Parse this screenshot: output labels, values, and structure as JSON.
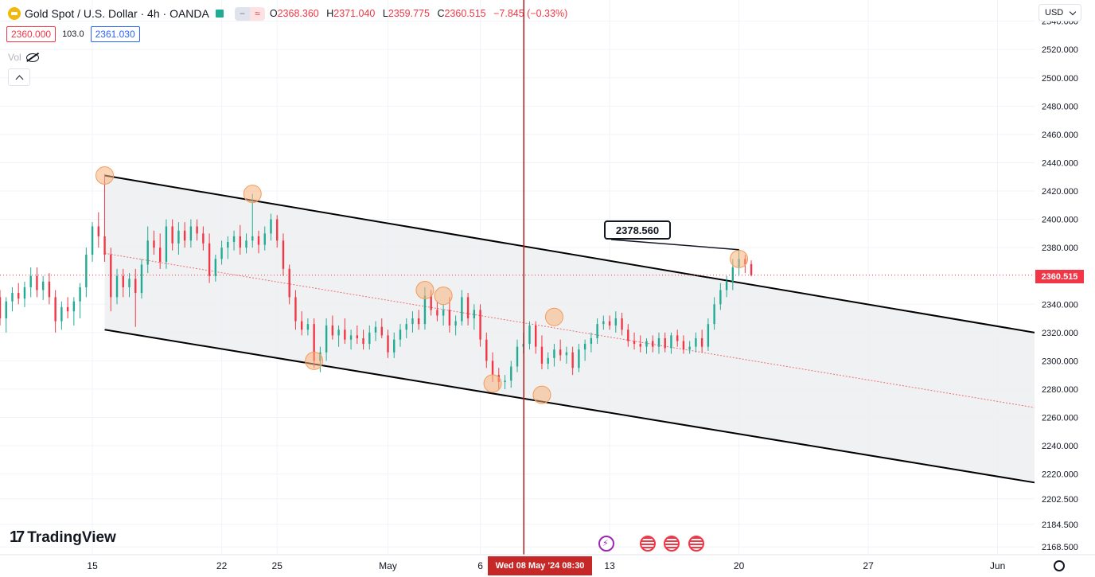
{
  "header": {
    "title": "Gold Spot / U.S. Dollar · 4h · OANDA",
    "ohlc": [
      {
        "k": "O",
        "v": "2368.360"
      },
      {
        "k": "H",
        "v": "2371.040"
      },
      {
        "k": "L",
        "v": "2359.775"
      },
      {
        "k": "C",
        "v": "2360.515"
      }
    ],
    "change": "−7.845 (−0.33%)",
    "bid": "2360.000",
    "spread": "103.0",
    "ask": "2361.030",
    "vol_label": "Vol",
    "currency": "USD"
  },
  "logo": "TradingView",
  "crosshair_time_label": "Wed 08 May '24   08:30",
  "last_price_label": "2360.515",
  "callout_label": "2378.560",
  "colors": {
    "up": "#22ab94",
    "down": "#f23645",
    "channel": "#000000",
    "fill": "#eceef0",
    "marker": "#f7b27d",
    "crosshair": "#b71c1c"
  },
  "chart_data": {
    "type": "candlestick",
    "symbol": "XAUUSD",
    "timeframe": "4h",
    "x_domain": [
      "2024-04-10",
      "2024-06-05"
    ],
    "y_range": [
      2163,
      2555
    ],
    "yticks": [
      2540,
      2520,
      2500,
      2480,
      2460,
      2440,
      2420,
      2400,
      2380,
      2340,
      2320,
      2300,
      2280,
      2260,
      2240,
      2220,
      2202.5,
      2184.5,
      2168.5
    ],
    "ytick_labels": [
      "2540.000",
      "2520.000",
      "2500.000",
      "2480.000",
      "2460.000",
      "2440.000",
      "2420.000",
      "2400.000",
      "2380.000",
      "2340.000",
      "2320.000",
      "2300.000",
      "2280.000",
      "2260.000",
      "2240.000",
      "2220.000",
      "2202.500",
      "2184.500",
      "2168.500"
    ],
    "xticks": [
      {
        "date": "2024-04-15",
        "label": "15"
      },
      {
        "date": "2024-04-22",
        "label": "22"
      },
      {
        "date": "2024-04-25",
        "label": "25"
      },
      {
        "date": "2024-05-01",
        "label": "May"
      },
      {
        "date": "2024-05-06",
        "label": "6"
      },
      {
        "date": "2024-05-13",
        "label": "13"
      },
      {
        "date": "2024-05-20",
        "label": "20"
      },
      {
        "date": "2024-05-27",
        "label": "27"
      },
      {
        "date": "2024-06-03",
        "label": "Jun"
      }
    ],
    "last_price": 2360.515,
    "crosshair_time": "2024-05-08T08:30",
    "candles": [
      {
        "t": "2024-04-10T00:00",
        "o": 2345,
        "h": 2350,
        "l": 2325,
        "c": 2330
      },
      {
        "t": "2024-04-10T08:00",
        "o": 2330,
        "h": 2345,
        "l": 2320,
        "c": 2342
      },
      {
        "t": "2024-04-10T16:00",
        "o": 2342,
        "h": 2352,
        "l": 2335,
        "c": 2348
      },
      {
        "t": "2024-04-11T00:00",
        "o": 2348,
        "h": 2355,
        "l": 2340,
        "c": 2344
      },
      {
        "t": "2024-04-11T08:00",
        "o": 2344,
        "h": 2356,
        "l": 2338,
        "c": 2352
      },
      {
        "t": "2024-04-11T16:00",
        "o": 2352,
        "h": 2366,
        "l": 2345,
        "c": 2360
      },
      {
        "t": "2024-04-12T00:00",
        "o": 2360,
        "h": 2366,
        "l": 2345,
        "c": 2350
      },
      {
        "t": "2024-04-12T08:00",
        "o": 2350,
        "h": 2360,
        "l": 2343,
        "c": 2356
      },
      {
        "t": "2024-04-12T16:00",
        "o": 2356,
        "h": 2362,
        "l": 2340,
        "c": 2345
      },
      {
        "t": "2024-04-13T00:00",
        "o": 2345,
        "h": 2350,
        "l": 2320,
        "c": 2328
      },
      {
        "t": "2024-04-13T08:00",
        "o": 2328,
        "h": 2342,
        "l": 2322,
        "c": 2338
      },
      {
        "t": "2024-04-13T16:00",
        "o": 2338,
        "h": 2345,
        "l": 2330,
        "c": 2335
      },
      {
        "t": "2024-04-14T00:00",
        "o": 2335,
        "h": 2345,
        "l": 2325,
        "c": 2342
      },
      {
        "t": "2024-04-14T08:00",
        "o": 2342,
        "h": 2355,
        "l": 2330,
        "c": 2352
      },
      {
        "t": "2024-04-14T16:00",
        "o": 2352,
        "h": 2380,
        "l": 2345,
        "c": 2375
      },
      {
        "t": "2024-04-15T00:00",
        "o": 2375,
        "h": 2398,
        "l": 2370,
        "c": 2395
      },
      {
        "t": "2024-04-15T08:00",
        "o": 2395,
        "h": 2405,
        "l": 2380,
        "c": 2388
      },
      {
        "t": "2024-04-15T16:00",
        "o": 2388,
        "h": 2432,
        "l": 2370,
        "c": 2375
      },
      {
        "t": "2024-04-16T00:00",
        "o": 2375,
        "h": 2380,
        "l": 2335,
        "c": 2345
      },
      {
        "t": "2024-04-16T08:00",
        "o": 2345,
        "h": 2365,
        "l": 2340,
        "c": 2360
      },
      {
        "t": "2024-04-16T16:00",
        "o": 2360,
        "h": 2365,
        "l": 2345,
        "c": 2352
      },
      {
        "t": "2024-04-17T00:00",
        "o": 2352,
        "h": 2362,
        "l": 2345,
        "c": 2358
      },
      {
        "t": "2024-04-17T08:00",
        "o": 2358,
        "h": 2365,
        "l": 2324,
        "c": 2348
      },
      {
        "t": "2024-04-17T16:00",
        "o": 2348,
        "h": 2372,
        "l": 2344,
        "c": 2368
      },
      {
        "t": "2024-04-18T00:00",
        "o": 2368,
        "h": 2395,
        "l": 2362,
        "c": 2385
      },
      {
        "t": "2024-04-18T08:00",
        "o": 2385,
        "h": 2392,
        "l": 2375,
        "c": 2380
      },
      {
        "t": "2024-04-18T16:00",
        "o": 2380,
        "h": 2390,
        "l": 2365,
        "c": 2370
      },
      {
        "t": "2024-04-19T00:00",
        "o": 2370,
        "h": 2400,
        "l": 2365,
        "c": 2395
      },
      {
        "t": "2024-04-19T08:00",
        "o": 2395,
        "h": 2400,
        "l": 2378,
        "c": 2383
      },
      {
        "t": "2024-04-19T16:00",
        "o": 2383,
        "h": 2398,
        "l": 2375,
        "c": 2392
      },
      {
        "t": "2024-04-20T00:00",
        "o": 2392,
        "h": 2398,
        "l": 2380,
        "c": 2385
      },
      {
        "t": "2024-04-20T08:00",
        "o": 2385,
        "h": 2400,
        "l": 2380,
        "c": 2395
      },
      {
        "t": "2024-04-20T16:00",
        "o": 2395,
        "h": 2400,
        "l": 2385,
        "c": 2390
      },
      {
        "t": "2024-04-21T00:00",
        "o": 2390,
        "h": 2395,
        "l": 2378,
        "c": 2383
      },
      {
        "t": "2024-04-21T08:00",
        "o": 2383,
        "h": 2390,
        "l": 2355,
        "c": 2360
      },
      {
        "t": "2024-04-21T16:00",
        "o": 2360,
        "h": 2375,
        "l": 2356,
        "c": 2372
      },
      {
        "t": "2024-04-22T00:00",
        "o": 2372,
        "h": 2385,
        "l": 2368,
        "c": 2380
      },
      {
        "t": "2024-04-22T08:00",
        "o": 2380,
        "h": 2388,
        "l": 2372,
        "c": 2384
      },
      {
        "t": "2024-04-22T16:00",
        "o": 2384,
        "h": 2392,
        "l": 2378,
        "c": 2388
      },
      {
        "t": "2024-04-23T00:00",
        "o": 2388,
        "h": 2396,
        "l": 2375,
        "c": 2380
      },
      {
        "t": "2024-04-23T08:00",
        "o": 2380,
        "h": 2390,
        "l": 2376,
        "c": 2385
      },
      {
        "t": "2024-04-23T16:00",
        "o": 2385,
        "h": 2418,
        "l": 2380,
        "c": 2388
      },
      {
        "t": "2024-04-24T00:00",
        "o": 2388,
        "h": 2392,
        "l": 2376,
        "c": 2382
      },
      {
        "t": "2024-04-24T08:00",
        "o": 2382,
        "h": 2395,
        "l": 2378,
        "c": 2390
      },
      {
        "t": "2024-04-24T16:00",
        "o": 2390,
        "h": 2404,
        "l": 2385,
        "c": 2400
      },
      {
        "t": "2024-04-25T00:00",
        "o": 2400,
        "h": 2403,
        "l": 2380,
        "c": 2385
      },
      {
        "t": "2024-04-25T08:00",
        "o": 2385,
        "h": 2390,
        "l": 2360,
        "c": 2365
      },
      {
        "t": "2024-04-25T16:00",
        "o": 2365,
        "h": 2368,
        "l": 2340,
        "c": 2345
      },
      {
        "t": "2024-04-26T00:00",
        "o": 2345,
        "h": 2350,
        "l": 2322,
        "c": 2328
      },
      {
        "t": "2024-04-26T08:00",
        "o": 2328,
        "h": 2335,
        "l": 2318,
        "c": 2322
      },
      {
        "t": "2024-04-26T16:00",
        "o": 2322,
        "h": 2330,
        "l": 2318,
        "c": 2326
      },
      {
        "t": "2024-04-27T00:00",
        "o": 2326,
        "h": 2330,
        "l": 2295,
        "c": 2300
      },
      {
        "t": "2024-04-27T08:00",
        "o": 2300,
        "h": 2310,
        "l": 2292,
        "c": 2306
      },
      {
        "t": "2024-04-27T16:00",
        "o": 2306,
        "h": 2330,
        "l": 2300,
        "c": 2325
      },
      {
        "t": "2024-04-28T00:00",
        "o": 2325,
        "h": 2332,
        "l": 2315,
        "c": 2318
      },
      {
        "t": "2024-04-28T08:00",
        "o": 2318,
        "h": 2325,
        "l": 2310,
        "c": 2322
      },
      {
        "t": "2024-04-28T16:00",
        "o": 2322,
        "h": 2330,
        "l": 2312,
        "c": 2315
      },
      {
        "t": "2024-04-29T00:00",
        "o": 2315,
        "h": 2322,
        "l": 2308,
        "c": 2318
      },
      {
        "t": "2024-04-29T08:00",
        "o": 2318,
        "h": 2325,
        "l": 2312,
        "c": 2316
      },
      {
        "t": "2024-04-29T16:00",
        "o": 2316,
        "h": 2322,
        "l": 2308,
        "c": 2312
      },
      {
        "t": "2024-04-30T00:00",
        "o": 2312,
        "h": 2325,
        "l": 2308,
        "c": 2320
      },
      {
        "t": "2024-04-30T08:00",
        "o": 2320,
        "h": 2328,
        "l": 2314,
        "c": 2324
      },
      {
        "t": "2024-04-30T16:00",
        "o": 2324,
        "h": 2330,
        "l": 2316,
        "c": 2318
      },
      {
        "t": "2024-05-01T00:00",
        "o": 2318,
        "h": 2322,
        "l": 2302,
        "c": 2306
      },
      {
        "t": "2024-05-01T08:00",
        "o": 2306,
        "h": 2320,
        "l": 2302,
        "c": 2315
      },
      {
        "t": "2024-05-01T16:00",
        "o": 2315,
        "h": 2326,
        "l": 2310,
        "c": 2322
      },
      {
        "t": "2024-05-02T00:00",
        "o": 2322,
        "h": 2330,
        "l": 2316,
        "c": 2326
      },
      {
        "t": "2024-05-02T08:00",
        "o": 2326,
        "h": 2335,
        "l": 2320,
        "c": 2330
      },
      {
        "t": "2024-05-02T16:00",
        "o": 2330,
        "h": 2336,
        "l": 2322,
        "c": 2326
      },
      {
        "t": "2024-05-03T00:00",
        "o": 2326,
        "h": 2352,
        "l": 2322,
        "c": 2346
      },
      {
        "t": "2024-05-03T08:00",
        "o": 2346,
        "h": 2350,
        "l": 2332,
        "c": 2336
      },
      {
        "t": "2024-05-03T16:00",
        "o": 2336,
        "h": 2342,
        "l": 2328,
        "c": 2332
      },
      {
        "t": "2024-05-04T00:00",
        "o": 2332,
        "h": 2340,
        "l": 2325,
        "c": 2336
      },
      {
        "t": "2024-05-04T08:00",
        "o": 2336,
        "h": 2345,
        "l": 2320,
        "c": 2325
      },
      {
        "t": "2024-05-04T16:00",
        "o": 2325,
        "h": 2332,
        "l": 2318,
        "c": 2328
      },
      {
        "t": "2024-05-05T00:00",
        "o": 2328,
        "h": 2350,
        "l": 2325,
        "c": 2345
      },
      {
        "t": "2024-05-05T08:00",
        "o": 2345,
        "h": 2348,
        "l": 2325,
        "c": 2330
      },
      {
        "t": "2024-05-05T16:00",
        "o": 2330,
        "h": 2340,
        "l": 2322,
        "c": 2336
      },
      {
        "t": "2024-05-06T00:00",
        "o": 2336,
        "h": 2340,
        "l": 2310,
        "c": 2315
      },
      {
        "t": "2024-05-06T08:00",
        "o": 2315,
        "h": 2320,
        "l": 2295,
        "c": 2300
      },
      {
        "t": "2024-05-06T16:00",
        "o": 2300,
        "h": 2306,
        "l": 2285,
        "c": 2290
      },
      {
        "t": "2024-05-07T00:00",
        "o": 2290,
        "h": 2295,
        "l": 2280,
        "c": 2285
      },
      {
        "t": "2024-05-07T08:00",
        "o": 2285,
        "h": 2290,
        "l": 2280,
        "c": 2286
      },
      {
        "t": "2024-05-07T16:00",
        "o": 2286,
        "h": 2300,
        "l": 2281,
        "c": 2296
      },
      {
        "t": "2024-05-08T00:00",
        "o": 2296,
        "h": 2315,
        "l": 2292,
        "c": 2310
      },
      {
        "t": "2024-05-08T08:00",
        "o": 2310,
        "h": 2320,
        "l": 2305,
        "c": 2312
      },
      {
        "t": "2024-05-08T16:00",
        "o": 2312,
        "h": 2328,
        "l": 2308,
        "c": 2325
      },
      {
        "t": "2024-05-09T00:00",
        "o": 2325,
        "h": 2328,
        "l": 2305,
        "c": 2310
      },
      {
        "t": "2024-05-09T08:00",
        "o": 2310,
        "h": 2318,
        "l": 2294,
        "c": 2298
      },
      {
        "t": "2024-05-09T16:00",
        "o": 2298,
        "h": 2306,
        "l": 2294,
        "c": 2302
      },
      {
        "t": "2024-05-10T00:00",
        "o": 2302,
        "h": 2312,
        "l": 2296,
        "c": 2308
      },
      {
        "t": "2024-05-10T08:00",
        "o": 2308,
        "h": 2315,
        "l": 2300,
        "c": 2304
      },
      {
        "t": "2024-05-10T16:00",
        "o": 2304,
        "h": 2310,
        "l": 2298,
        "c": 2306
      },
      {
        "t": "2024-05-11T00:00",
        "o": 2306,
        "h": 2310,
        "l": 2290,
        "c": 2295
      },
      {
        "t": "2024-05-11T08:00",
        "o": 2295,
        "h": 2312,
        "l": 2292,
        "c": 2308
      },
      {
        "t": "2024-05-11T16:00",
        "o": 2308,
        "h": 2315,
        "l": 2300,
        "c": 2312
      },
      {
        "t": "2024-05-12T00:00",
        "o": 2312,
        "h": 2320,
        "l": 2306,
        "c": 2316
      },
      {
        "t": "2024-05-12T08:00",
        "o": 2316,
        "h": 2330,
        "l": 2312,
        "c": 2326
      },
      {
        "t": "2024-05-12T16:00",
        "o": 2326,
        "h": 2332,
        "l": 2322,
        "c": 2328
      },
      {
        "t": "2024-05-13T00:00",
        "o": 2328,
        "h": 2332,
        "l": 2322,
        "c": 2325
      },
      {
        "t": "2024-05-13T08:00",
        "o": 2325,
        "h": 2335,
        "l": 2320,
        "c": 2330
      },
      {
        "t": "2024-05-13T16:00",
        "o": 2330,
        "h": 2334,
        "l": 2318,
        "c": 2322
      },
      {
        "t": "2024-05-14T00:00",
        "o": 2322,
        "h": 2326,
        "l": 2310,
        "c": 2314
      },
      {
        "t": "2024-05-14T08:00",
        "o": 2314,
        "h": 2320,
        "l": 2308,
        "c": 2312
      },
      {
        "t": "2024-05-14T16:00",
        "o": 2312,
        "h": 2318,
        "l": 2306,
        "c": 2310
      },
      {
        "t": "2024-05-15T00:00",
        "o": 2310,
        "h": 2316,
        "l": 2305,
        "c": 2314
      },
      {
        "t": "2024-05-15T08:00",
        "o": 2314,
        "h": 2318,
        "l": 2306,
        "c": 2310
      },
      {
        "t": "2024-05-15T16:00",
        "o": 2310,
        "h": 2320,
        "l": 2305,
        "c": 2316
      },
      {
        "t": "2024-05-16T00:00",
        "o": 2316,
        "h": 2320,
        "l": 2306,
        "c": 2309
      },
      {
        "t": "2024-05-16T08:00",
        "o": 2309,
        "h": 2320,
        "l": 2305,
        "c": 2318
      },
      {
        "t": "2024-05-16T16:00",
        "o": 2318,
        "h": 2322,
        "l": 2310,
        "c": 2314
      },
      {
        "t": "2024-05-17T00:00",
        "o": 2314,
        "h": 2318,
        "l": 2305,
        "c": 2308
      },
      {
        "t": "2024-05-17T08:00",
        "o": 2308,
        "h": 2314,
        "l": 2305,
        "c": 2310
      },
      {
        "t": "2024-05-17T16:00",
        "o": 2310,
        "h": 2320,
        "l": 2306,
        "c": 2316
      },
      {
        "t": "2024-05-18T00:00",
        "o": 2316,
        "h": 2322,
        "l": 2306,
        "c": 2310
      },
      {
        "t": "2024-05-18T08:00",
        "o": 2310,
        "h": 2330,
        "l": 2307,
        "c": 2326
      },
      {
        "t": "2024-05-18T16:00",
        "o": 2326,
        "h": 2345,
        "l": 2322,
        "c": 2340
      },
      {
        "t": "2024-05-19T00:00",
        "o": 2340,
        "h": 2355,
        "l": 2336,
        "c": 2350
      },
      {
        "t": "2024-05-19T08:00",
        "o": 2350,
        "h": 2360,
        "l": 2345,
        "c": 2356
      },
      {
        "t": "2024-05-19T16:00",
        "o": 2356,
        "h": 2372,
        "l": 2350,
        "c": 2366
      },
      {
        "t": "2024-05-20T00:00",
        "o": 2366,
        "h": 2379,
        "l": 2360,
        "c": 2372
      },
      {
        "t": "2024-05-20T08:00",
        "o": 2372,
        "h": 2375,
        "l": 2362,
        "c": 2368
      },
      {
        "t": "2024-05-20T16:00",
        "o": 2368.36,
        "h": 2371.04,
        "l": 2359.775,
        "c": 2360.515
      }
    ],
    "channel": {
      "upper": [
        {
          "t": "2024-04-15T16:00",
          "p": 2431
        },
        {
          "t": "2024-06-05T00:00",
          "p": 2320
        }
      ],
      "lower": [
        {
          "t": "2024-04-15T16:00",
          "p": 2322
        },
        {
          "t": "2024-06-05T00:00",
          "p": 2214
        }
      ],
      "mid": [
        {
          "t": "2024-04-15T16:00",
          "p": 2376
        },
        {
          "t": "2024-06-05T00:00",
          "p": 2267
        }
      ]
    },
    "touch_markers": [
      {
        "t": "2024-04-15T16:00",
        "p": 2431
      },
      {
        "t": "2024-04-23T16:00",
        "p": 2418
      },
      {
        "t": "2024-04-27T00:00",
        "p": 2300
      },
      {
        "t": "2024-05-03T00:00",
        "p": 2350
      },
      {
        "t": "2024-05-04T00:00",
        "p": 2346
      },
      {
        "t": "2024-05-06T16:00",
        "p": 2284
      },
      {
        "t": "2024-05-09T08:00",
        "p": 2276
      },
      {
        "t": "2024-05-10T00:00",
        "p": 2331
      },
      {
        "t": "2024-05-20T00:00",
        "p": 2372
      }
    ],
    "callout_point": {
      "t": "2024-05-20T00:00",
      "p": 2378.56
    }
  }
}
